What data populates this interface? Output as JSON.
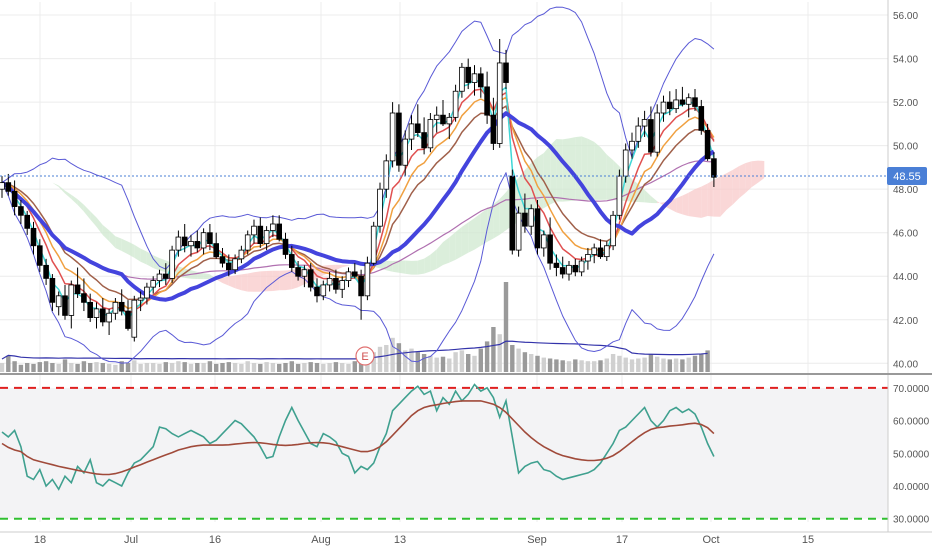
{
  "chart_data": [
    {
      "type": "candlestick",
      "panel": "price",
      "y_ticks": [
        "56.00",
        "54.00",
        "52.00",
        "50.00",
        "48.00",
        "46.00",
        "44.00",
        "42.00",
        "40.00"
      ],
      "ylim": [
        39.6,
        56.6
      ],
      "last_price_label": "48.55",
      "last_price": 48.55,
      "earnings_marker_label": "E",
      "colors": {
        "up_candle_fill": "#ffffff",
        "down_candle_fill": "#000000",
        "candle_outline": "#000000",
        "bollinger": "#5a5ad6",
        "sma_thick": "#4444dd",
        "ema_fast": "#3fd6d6",
        "ema_mid": "#e05050",
        "ema_orange": "#f0a040",
        "ema_brown": "#a0604a",
        "sma_purple": "#b070b0",
        "cloud_bear": "#f8caca",
        "cloud_bull": "#cfe8cf",
        "volume_up": "#d0d0d0",
        "volume_down": "#9a9a9a",
        "price_line": "#4a7fd6"
      },
      "candles": [
        [
          48.0,
          48.6,
          47.6,
          48.3
        ],
        [
          48.3,
          48.7,
          47.7,
          47.9
        ],
        [
          47.9,
          48.4,
          46.8,
          47.2
        ],
        [
          47.2,
          47.5,
          46.4,
          46.8
        ],
        [
          46.8,
          47.0,
          45.9,
          46.2
        ],
        [
          46.2,
          46.5,
          45.0,
          45.4
        ],
        [
          45.4,
          45.7,
          44.2,
          44.5
        ],
        [
          44.5,
          44.8,
          43.6,
          43.9
        ],
        [
          43.9,
          44.1,
          42.4,
          42.8
        ],
        [
          42.6,
          43.3,
          42.2,
          43.1
        ],
        [
          43.1,
          43.6,
          42.0,
          42.2
        ],
        [
          42.2,
          43.8,
          41.6,
          43.6
        ],
        [
          43.6,
          44.4,
          43.0,
          43.2
        ],
        [
          43.2,
          43.9,
          42.4,
          42.8
        ],
        [
          42.8,
          43.2,
          41.9,
          42.1
        ],
        [
          42.1,
          42.8,
          41.6,
          42.5
        ],
        [
          42.5,
          43.0,
          41.7,
          41.9
        ],
        [
          41.9,
          42.5,
          41.3,
          42.3
        ],
        [
          42.3,
          43.0,
          42.0,
          42.8
        ],
        [
          42.8,
          43.4,
          42.2,
          42.4
        ],
        [
          42.4,
          42.9,
          41.5,
          41.6
        ],
        [
          41.2,
          43.1,
          41.0,
          42.9
        ],
        [
          42.9,
          43.3,
          42.4,
          43.0
        ],
        [
          43.0,
          43.7,
          42.7,
          43.5
        ],
        [
          43.5,
          44.0,
          43.2,
          43.8
        ],
        [
          43.8,
          44.3,
          43.5,
          44.1
        ],
        [
          44.1,
          44.6,
          43.6,
          43.9
        ],
        [
          43.9,
          45.4,
          43.7,
          45.2
        ],
        [
          45.2,
          46.1,
          44.9,
          45.8
        ],
        [
          45.8,
          46.4,
          45.1,
          45.4
        ],
        [
          45.4,
          45.9,
          44.9,
          45.6
        ],
        [
          45.6,
          46.1,
          45.1,
          45.3
        ],
        [
          45.3,
          46.2,
          45.0,
          46.0
        ],
        [
          46.0,
          46.4,
          45.2,
          45.5
        ],
        [
          45.5,
          46.0,
          44.8,
          44.9
        ],
        [
          44.9,
          45.3,
          44.4,
          44.6
        ],
        [
          44.6,
          45.0,
          44.0,
          44.3
        ],
        [
          44.3,
          45.0,
          44.1,
          44.8
        ],
        [
          44.8,
          45.4,
          44.6,
          45.2
        ],
        [
          45.2,
          46.1,
          45.0,
          45.9
        ],
        [
          45.9,
          46.6,
          45.5,
          46.3
        ],
        [
          46.3,
          46.7,
          45.3,
          45.5
        ],
        [
          45.5,
          46.3,
          45.2,
          46.1
        ],
        [
          46.1,
          46.8,
          45.8,
          46.4
        ],
        [
          46.4,
          46.8,
          45.6,
          45.7
        ],
        [
          45.7,
          46.0,
          44.8,
          45.0
        ],
        [
          45.0,
          45.4,
          44.2,
          44.4
        ],
        [
          44.4,
          44.7,
          43.8,
          44.0
        ],
        [
          44.0,
          44.5,
          43.5,
          44.3
        ],
        [
          44.3,
          44.6,
          43.3,
          43.5
        ],
        [
          43.5,
          43.9,
          42.8,
          43.1
        ],
        [
          43.1,
          43.8,
          42.9,
          43.6
        ],
        [
          43.6,
          44.2,
          43.3,
          43.9
        ],
        [
          43.9,
          44.3,
          43.2,
          43.4
        ],
        [
          43.4,
          44.0,
          43.0,
          43.8
        ],
        [
          43.8,
          44.4,
          43.5,
          44.2
        ],
        [
          44.2,
          44.6,
          43.9,
          44.0
        ],
        [
          44.0,
          44.3,
          42.0,
          43.1
        ],
        [
          43.1,
          44.9,
          42.9,
          44.6
        ],
        [
          44.6,
          46.5,
          44.5,
          46.3
        ],
        [
          46.3,
          48.3,
          46.0,
          48.0
        ],
        [
          48.0,
          49.6,
          47.6,
          49.3
        ],
        [
          49.3,
          52.0,
          49.0,
          51.5
        ],
        [
          51.5,
          51.9,
          48.8,
          49.1
        ],
        [
          49.1,
          50.7,
          48.6,
          50.3
        ],
        [
          50.3,
          51.4,
          49.8,
          51.0
        ],
        [
          51.0,
          51.9,
          50.4,
          50.6
        ],
        [
          50.6,
          51.3,
          49.6,
          49.9
        ],
        [
          49.9,
          51.5,
          49.7,
          51.2
        ],
        [
          51.2,
          51.8,
          50.6,
          51.4
        ],
        [
          51.4,
          52.1,
          50.9,
          51.0
        ],
        [
          51.0,
          51.5,
          50.3,
          51.3
        ],
        [
          51.3,
          52.8,
          51.1,
          52.5
        ],
        [
          52.5,
          53.8,
          52.2,
          53.6
        ],
        [
          53.6,
          54.0,
          52.6,
          52.9
        ],
        [
          52.9,
          53.7,
          52.3,
          53.3
        ],
        [
          53.3,
          53.6,
          52.2,
          52.7
        ],
        [
          52.7,
          53.4,
          51.0,
          51.4
        ],
        [
          51.4,
          52.2,
          49.8,
          50.1
        ],
        [
          50.1,
          54.9,
          49.9,
          53.8
        ],
        [
          53.8,
          54.4,
          52.6,
          52.9
        ],
        [
          48.6,
          48.9,
          45.0,
          45.2
        ],
        [
          45.2,
          47.2,
          44.9,
          46.9
        ],
        [
          46.9,
          47.8,
          46.0,
          46.3
        ],
        [
          46.3,
          47.3,
          45.9,
          47.1
        ],
        [
          47.1,
          47.5,
          45.0,
          45.3
        ],
        [
          45.3,
          46.1,
          44.9,
          45.9
        ],
        [
          45.9,
          46.7,
          44.3,
          44.6
        ],
        [
          44.6,
          45.0,
          44.0,
          44.4
        ],
        [
          44.4,
          44.9,
          43.9,
          44.1
        ],
        [
          44.1,
          44.7,
          43.8,
          44.5
        ],
        [
          44.5,
          44.8,
          44.0,
          44.2
        ],
        [
          44.2,
          44.9,
          44.0,
          44.7
        ],
        [
          44.7,
          45.3,
          44.3,
          45.0
        ],
        [
          45.0,
          45.5,
          44.6,
          45.3
        ],
        [
          45.3,
          45.7,
          44.8,
          44.9
        ],
        [
          44.9,
          45.6,
          44.7,
          45.4
        ],
        [
          45.4,
          47.0,
          45.2,
          46.8
        ],
        [
          46.8,
          48.9,
          46.6,
          48.6
        ],
        [
          48.6,
          50.1,
          48.3,
          49.8
        ],
        [
          49.8,
          50.6,
          49.4,
          50.2
        ],
        [
          50.2,
          51.3,
          49.9,
          50.9
        ],
        [
          50.9,
          51.6,
          50.4,
          51.2
        ],
        [
          51.2,
          51.8,
          49.5,
          49.7
        ],
        [
          49.7,
          51.9,
          49.5,
          51.5
        ],
        [
          51.5,
          52.3,
          51.1,
          52.0
        ],
        [
          52.0,
          52.5,
          51.4,
          51.7
        ],
        [
          51.7,
          52.6,
          51.5,
          52.1
        ],
        [
          52.1,
          52.7,
          51.8,
          51.9
        ],
        [
          51.9,
          52.4,
          51.3,
          52.2
        ],
        [
          52.2,
          52.6,
          51.6,
          51.8
        ],
        [
          51.8,
          52.1,
          50.5,
          50.7
        ],
        [
          50.7,
          51.0,
          49.3,
          49.4
        ],
        [
          49.4,
          49.7,
          48.1,
          48.55
        ]
      ],
      "volume": [
        0.1,
        0.18,
        0.12,
        0.08,
        0.1,
        0.09,
        0.11,
        0.12,
        0.1,
        0.09,
        0.14,
        0.1,
        0.09,
        0.12,
        0.1,
        0.11,
        0.1,
        0.09,
        0.08,
        0.12,
        0.1,
        0.13,
        0.09,
        0.1,
        0.1,
        0.09,
        0.11,
        0.1,
        0.12,
        0.11,
        0.09,
        0.1,
        0.1,
        0.12,
        0.09,
        0.1,
        0.11,
        0.1,
        0.09,
        0.12,
        0.1,
        0.09,
        0.11,
        0.1,
        0.09,
        0.1,
        0.12,
        0.09,
        0.1,
        0.11,
        0.1,
        0.09,
        0.1,
        0.11,
        0.1,
        0.09,
        0.12,
        0.16,
        0.25,
        0.22,
        0.28,
        0.3,
        0.38,
        0.32,
        0.24,
        0.26,
        0.22,
        0.2,
        0.18,
        0.16,
        0.17,
        0.15,
        0.22,
        0.24,
        0.2,
        0.18,
        0.26,
        0.34,
        0.5,
        0.42,
        1.0,
        0.3,
        0.26,
        0.22,
        0.2,
        0.18,
        0.16,
        0.15,
        0.14,
        0.13,
        0.12,
        0.14,
        0.13,
        0.12,
        0.12,
        0.13,
        0.15,
        0.2,
        0.18,
        0.16,
        0.14,
        0.15,
        0.16,
        0.2,
        0.17,
        0.15,
        0.14,
        0.15,
        0.14,
        0.16,
        0.18,
        0.2,
        0.24
      ]
    },
    {
      "type": "line",
      "panel": "oscillator",
      "y_ticks": [
        "70.0000",
        "60.0000",
        "50.0000",
        "40.0000",
        "30.0000"
      ],
      "ylim": [
        29.0,
        73.0
      ],
      "upper_band": 70,
      "lower_band": 30,
      "colors": {
        "fast": "#3fa08f",
        "slow": "#a04a3a",
        "upper_band": "#e02020",
        "lower_band": "#30c030",
        "panel_bg": "#f3f3f5"
      },
      "series": [
        {
          "values": [
            56.5,
            55.0,
            57.0,
            52.0,
            43.0,
            42.0,
            45.0,
            40.0,
            42.0,
            39.0,
            43.0,
            41.0,
            46.0,
            44.0,
            48.0,
            41.0,
            40.0,
            42.0,
            41.0,
            40.0,
            44.0,
            47.0,
            48.0,
            50.0,
            52.0,
            58.0,
            57.5,
            56.0,
            55.0,
            56.0,
            57.0,
            56.0,
            55.0,
            53.0,
            54.0,
            56.0,
            58.0,
            60.0,
            59.0,
            57.0,
            55.0,
            52.0,
            48.5,
            49.0,
            55.0,
            60.0,
            64.0,
            60.0,
            56.5,
            53.0,
            52.0,
            56.0,
            55.0,
            53.5,
            50.0,
            49.0,
            44.0,
            46.0,
            45.0,
            47.0,
            52.0,
            56.0,
            63.0,
            65.0,
            67.0,
            69.0,
            70.5,
            68.0,
            69.0,
            63.0,
            67.0,
            65.0,
            69.0,
            66.0,
            68.0,
            71.0,
            69.0,
            70.0,
            67.0,
            61.0,
            66.0,
            55.0,
            44.0,
            46.0,
            47.0,
            47.5,
            45.0,
            44.5,
            43.0,
            42.0,
            42.5,
            43.0,
            43.5,
            44.0,
            45.0,
            47.0,
            50.0,
            53.0,
            57.0,
            58.0,
            60.0,
            62.0,
            64.0,
            60.0,
            58.0,
            60.0,
            63.0,
            64.0,
            62.5,
            63.5,
            62.0,
            58.0,
            53.0,
            49.0
          ]
        },
        {
          "values": [
            53.0,
            51.8,
            51.0,
            50.5,
            49.0,
            48.0,
            47.5,
            47.0,
            46.5,
            46.0,
            45.6,
            45.2,
            44.8,
            44.4,
            44.0,
            43.7,
            43.5,
            43.5,
            43.8,
            44.3,
            45.0,
            45.8,
            46.5,
            47.3,
            48.0,
            48.8,
            49.5,
            50.2,
            51.0,
            51.5,
            52.0,
            52.3,
            52.5,
            52.5,
            52.5,
            52.5,
            52.6,
            52.8,
            53.0,
            53.2,
            53.3,
            53.2,
            53.0,
            52.7,
            52.5,
            52.4,
            52.5,
            52.7,
            53.0,
            53.2,
            53.3,
            53.2,
            53.0,
            52.5,
            52.0,
            51.5,
            51.0,
            50.5,
            50.5,
            51.0,
            52.0,
            53.5,
            55.5,
            57.5,
            59.5,
            61.5,
            63.0,
            64.0,
            64.5,
            64.8,
            65.2,
            65.5,
            65.8,
            66.0,
            66.0,
            66.0,
            66.0,
            65.5,
            65.0,
            64.0,
            62.5,
            60.5,
            58.5,
            56.5,
            54.8,
            53.3,
            52.0,
            51.0,
            50.0,
            49.3,
            48.8,
            48.3,
            48.0,
            47.8,
            47.8,
            48.0,
            48.5,
            49.3,
            50.5,
            52.0,
            53.5,
            55.0,
            56.3,
            57.3,
            57.8,
            58.0,
            58.3,
            58.5,
            58.7,
            59.0,
            59.2,
            58.8,
            57.8,
            56.0
          ]
        }
      ]
    }
  ],
  "x_axis": {
    "tick_labels": [
      "18",
      "Jul",
      "16",
      "Aug",
      "13",
      "Sep",
      "17",
      "Oct",
      "15"
    ]
  }
}
